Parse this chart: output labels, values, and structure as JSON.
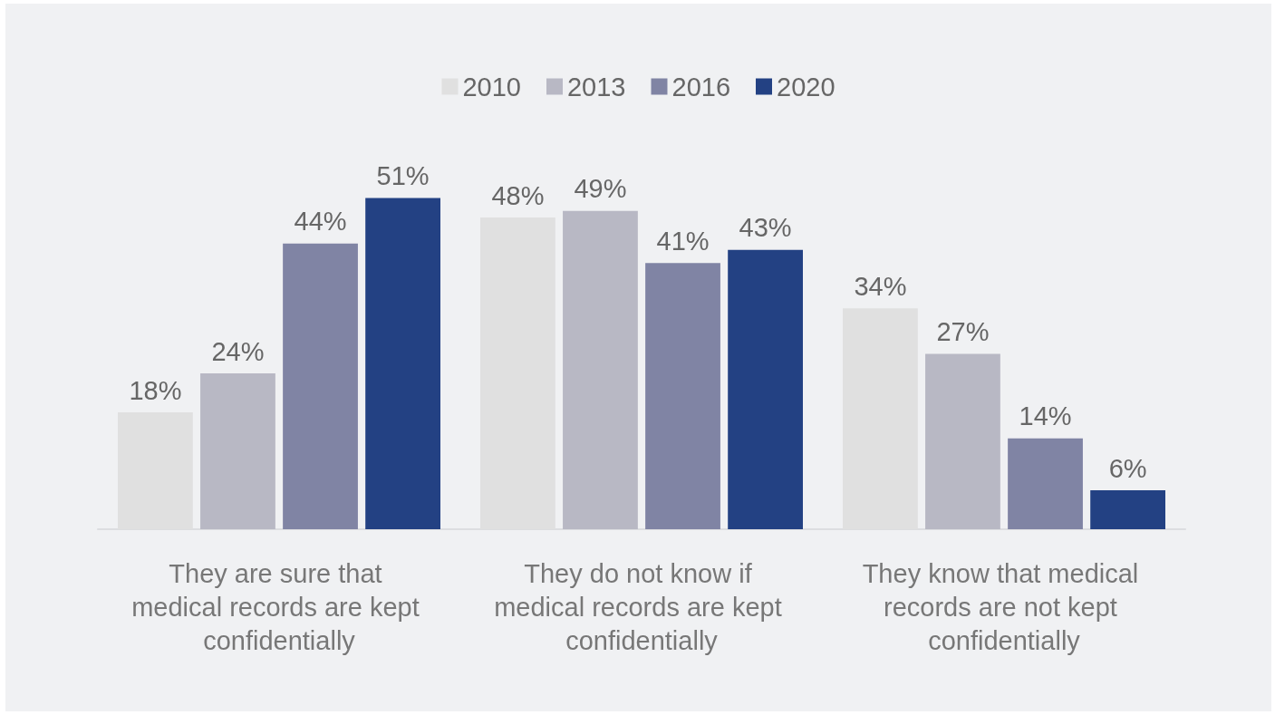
{
  "chart_data": {
    "type": "bar",
    "tick_labels": "x",
    "categories": [
      "They are sure that medical records are kept confidentially",
      "They do not know if medical records are kept confidentially",
      "They know that medical records are not kept confidentially"
    ],
    "series": [
      {
        "name": "2010",
        "color": "#e0e0e0",
        "values": [
          18,
          48,
          34
        ],
        "value_labels": [
          "18%",
          "48%",
          "34%"
        ]
      },
      {
        "name": "2013",
        "color": "#b8b8c4",
        "values": [
          24,
          49,
          27
        ],
        "value_labels": [
          "24%",
          "49%",
          "27%"
        ]
      },
      {
        "name": "2016",
        "color": "#8084a4",
        "values": [
          44,
          41,
          14
        ],
        "value_labels": [
          "44%",
          "41%",
          "14%"
        ]
      },
      {
        "name": "2020",
        "color": "#234183",
        "values": [
          51,
          43,
          6
        ],
        "value_labels": [
          "51%",
          "43%",
          "6%"
        ]
      }
    ],
    "legend": "top",
    "grid": false
  }
}
